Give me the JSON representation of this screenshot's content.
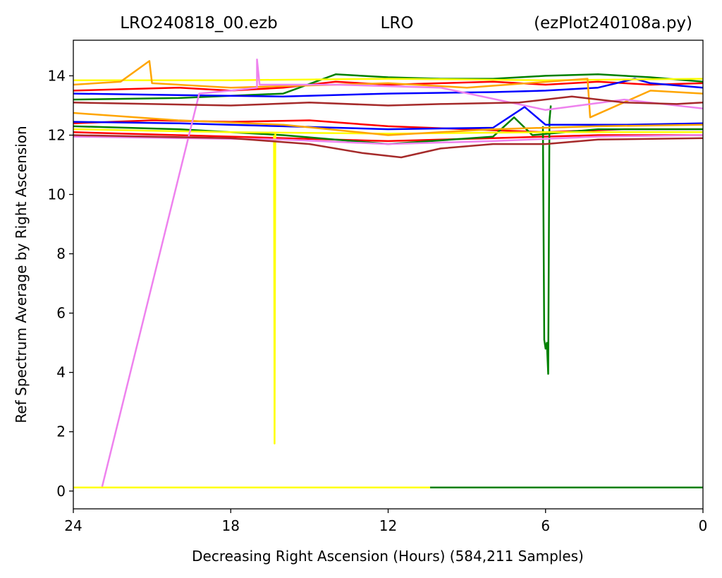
{
  "chart_data": {
    "type": "line",
    "title_left": "LRO240818_00.ezb",
    "title_center": "LRO",
    "title_right": "(ezPlot240108a.py)",
    "xlabel": "Decreasing Right Ascension (Hours) (584,211 Samples)",
    "ylabel": "Ref Spectrum Average by Right Ascension",
    "xlim": [
      24,
      0
    ],
    "ylim": [
      -0.6,
      15.2
    ],
    "x_reversed": true,
    "xticks": [
      24,
      18,
      12,
      6,
      0
    ],
    "yticks": [
      0,
      2,
      4,
      6,
      8,
      10,
      12,
      14
    ],
    "grid": false,
    "colors": {
      "red": "#ff0000",
      "green": "#008000",
      "blue": "#0000ff",
      "yellow": "#ffff00",
      "orange": "#ffa500",
      "violet": "#ee82ee",
      "brown": "#a52a2a"
    },
    "series": [
      {
        "color": "red",
        "values": [
          [
            24,
            13.5
          ],
          [
            22,
            13.55
          ],
          [
            20,
            13.6
          ],
          [
            18,
            13.5
          ],
          [
            16,
            13.6
          ],
          [
            14,
            13.8
          ],
          [
            12,
            13.7
          ],
          [
            10,
            13.75
          ],
          [
            8,
            13.8
          ],
          [
            6,
            13.7
          ],
          [
            4,
            13.8
          ],
          [
            2,
            13.7
          ],
          [
            0,
            13.75
          ]
        ]
      },
      {
        "color": "red",
        "values": [
          [
            24,
            12.4
          ],
          [
            21,
            12.5
          ],
          [
            18,
            12.45
          ],
          [
            15,
            12.5
          ],
          [
            12,
            12.3
          ],
          [
            9,
            12.2
          ],
          [
            6,
            12.1
          ],
          [
            3,
            12.2
          ],
          [
            0,
            12.2
          ]
        ]
      },
      {
        "color": "red",
        "values": [
          [
            24,
            12.1
          ],
          [
            20,
            12.0
          ],
          [
            16,
            11.9
          ],
          [
            12,
            11.8
          ],
          [
            8,
            11.9
          ],
          [
            4,
            12.0
          ],
          [
            0,
            12.0
          ]
        ]
      },
      {
        "color": "green",
        "values": [
          [
            24,
            13.2
          ],
          [
            20,
            13.25
          ],
          [
            16,
            13.4
          ],
          [
            14,
            14.05
          ],
          [
            12,
            13.95
          ],
          [
            10,
            13.9
          ],
          [
            8,
            13.9
          ],
          [
            6,
            14.0
          ],
          [
            4,
            14.05
          ],
          [
            2,
            13.95
          ],
          [
            0,
            13.8
          ]
        ]
      },
      {
        "color": "green",
        "values": [
          [
            24,
            12.3
          ],
          [
            20,
            12.2
          ],
          [
            16,
            12.0
          ],
          [
            12,
            11.7
          ],
          [
            8,
            11.95
          ],
          [
            7.2,
            12.6
          ],
          [
            6.5,
            12.0
          ],
          [
            4,
            12.2
          ],
          [
            0,
            12.2
          ]
        ]
      },
      {
        "color": "green",
        "values": [
          [
            6.1,
            12.3
          ],
          [
            6.05,
            5.1
          ],
          [
            6.0,
            4.8
          ],
          [
            5.95,
            5.0
          ],
          [
            5.9,
            3.95
          ],
          [
            5.85,
            12.5
          ],
          [
            5.8,
            13.0
          ]
        ]
      },
      {
        "color": "green",
        "values": [
          [
            10.4,
            0.12
          ],
          [
            0,
            0.12
          ]
        ]
      },
      {
        "color": "blue",
        "values": [
          [
            24,
            13.4
          ],
          [
            20,
            13.35
          ],
          [
            16,
            13.3
          ],
          [
            12,
            13.4
          ],
          [
            8,
            13.45
          ],
          [
            6,
            13.5
          ],
          [
            4,
            13.6
          ],
          [
            2.6,
            13.9
          ],
          [
            2,
            13.75
          ],
          [
            0,
            13.6
          ]
        ]
      },
      {
        "color": "blue",
        "values": [
          [
            24,
            12.45
          ],
          [
            20,
            12.4
          ],
          [
            16,
            12.3
          ],
          [
            12,
            12.2
          ],
          [
            8,
            12.25
          ],
          [
            6.8,
            12.95
          ],
          [
            6,
            12.35
          ],
          [
            3,
            12.35
          ],
          [
            0,
            12.4
          ]
        ]
      },
      {
        "color": "yellow",
        "values": [
          [
            24,
            13.85
          ],
          [
            18,
            13.85
          ],
          [
            12,
            13.9
          ],
          [
            6,
            13.85
          ],
          [
            0,
            13.9
          ]
        ]
      },
      {
        "color": "yellow",
        "values": [
          [
            24,
            12.2
          ],
          [
            18,
            12.1
          ],
          [
            12,
            12.05
          ],
          [
            6,
            12.1
          ],
          [
            0,
            12.1
          ]
        ]
      },
      {
        "color": "yellow",
        "values": [
          [
            16.35,
            12.0
          ],
          [
            16.33,
            1.6
          ],
          [
            16.3,
            12.1
          ]
        ]
      },
      {
        "color": "yellow",
        "values": [
          [
            24,
            0.12
          ],
          [
            10.4,
            0.12
          ]
        ]
      },
      {
        "color": "orange",
        "values": [
          [
            24,
            13.7
          ],
          [
            22.2,
            13.8
          ],
          [
            21.1,
            14.5
          ],
          [
            21.0,
            13.75
          ],
          [
            18,
            13.6
          ],
          [
            12,
            13.75
          ],
          [
            9,
            13.6
          ],
          [
            4.4,
            13.9
          ],
          [
            4.3,
            12.6
          ],
          [
            2,
            13.5
          ],
          [
            0,
            13.4
          ]
        ]
      },
      {
        "color": "orange",
        "values": [
          [
            24,
            12.75
          ],
          [
            20,
            12.5
          ],
          [
            16,
            12.35
          ],
          [
            12,
            12.0
          ],
          [
            8,
            12.2
          ],
          [
            4,
            12.3
          ],
          [
            0,
            12.35
          ]
        ]
      },
      {
        "color": "violet",
        "values": [
          [
            22.9,
            0.15
          ],
          [
            19.2,
            13.4
          ],
          [
            18,
            13.5
          ],
          [
            17.0,
            13.6
          ],
          [
            17.0,
            14.55
          ],
          [
            16.9,
            13.7
          ],
          [
            14,
            13.7
          ],
          [
            10,
            13.6
          ],
          [
            6,
            12.85
          ],
          [
            3,
            13.2
          ],
          [
            0,
            12.9
          ]
        ]
      },
      {
        "color": "violet",
        "values": [
          [
            24,
            11.95
          ],
          [
            20,
            11.9
          ],
          [
            16,
            11.85
          ],
          [
            12,
            11.7
          ],
          [
            8,
            11.8
          ],
          [
            4,
            11.95
          ],
          [
            0,
            12.0
          ]
        ]
      },
      {
        "color": "brown",
        "values": [
          [
            24,
            13.1
          ],
          [
            21,
            13.05
          ],
          [
            18,
            13.0
          ],
          [
            15,
            13.1
          ],
          [
            12,
            13.0
          ],
          [
            10,
            13.05
          ],
          [
            7,
            13.1
          ],
          [
            5,
            13.3
          ],
          [
            3,
            13.1
          ],
          [
            1,
            13.05
          ],
          [
            0,
            13.1
          ]
        ]
      },
      {
        "color": "brown",
        "values": [
          [
            24,
            12.0
          ],
          [
            21,
            11.95
          ],
          [
            18,
            11.9
          ],
          [
            15,
            11.7
          ],
          [
            13,
            11.4
          ],
          [
            11.5,
            11.25
          ],
          [
            10,
            11.55
          ],
          [
            8,
            11.7
          ],
          [
            6,
            11.7
          ],
          [
            4,
            11.85
          ],
          [
            0,
            11.9
          ]
        ]
      }
    ]
  }
}
